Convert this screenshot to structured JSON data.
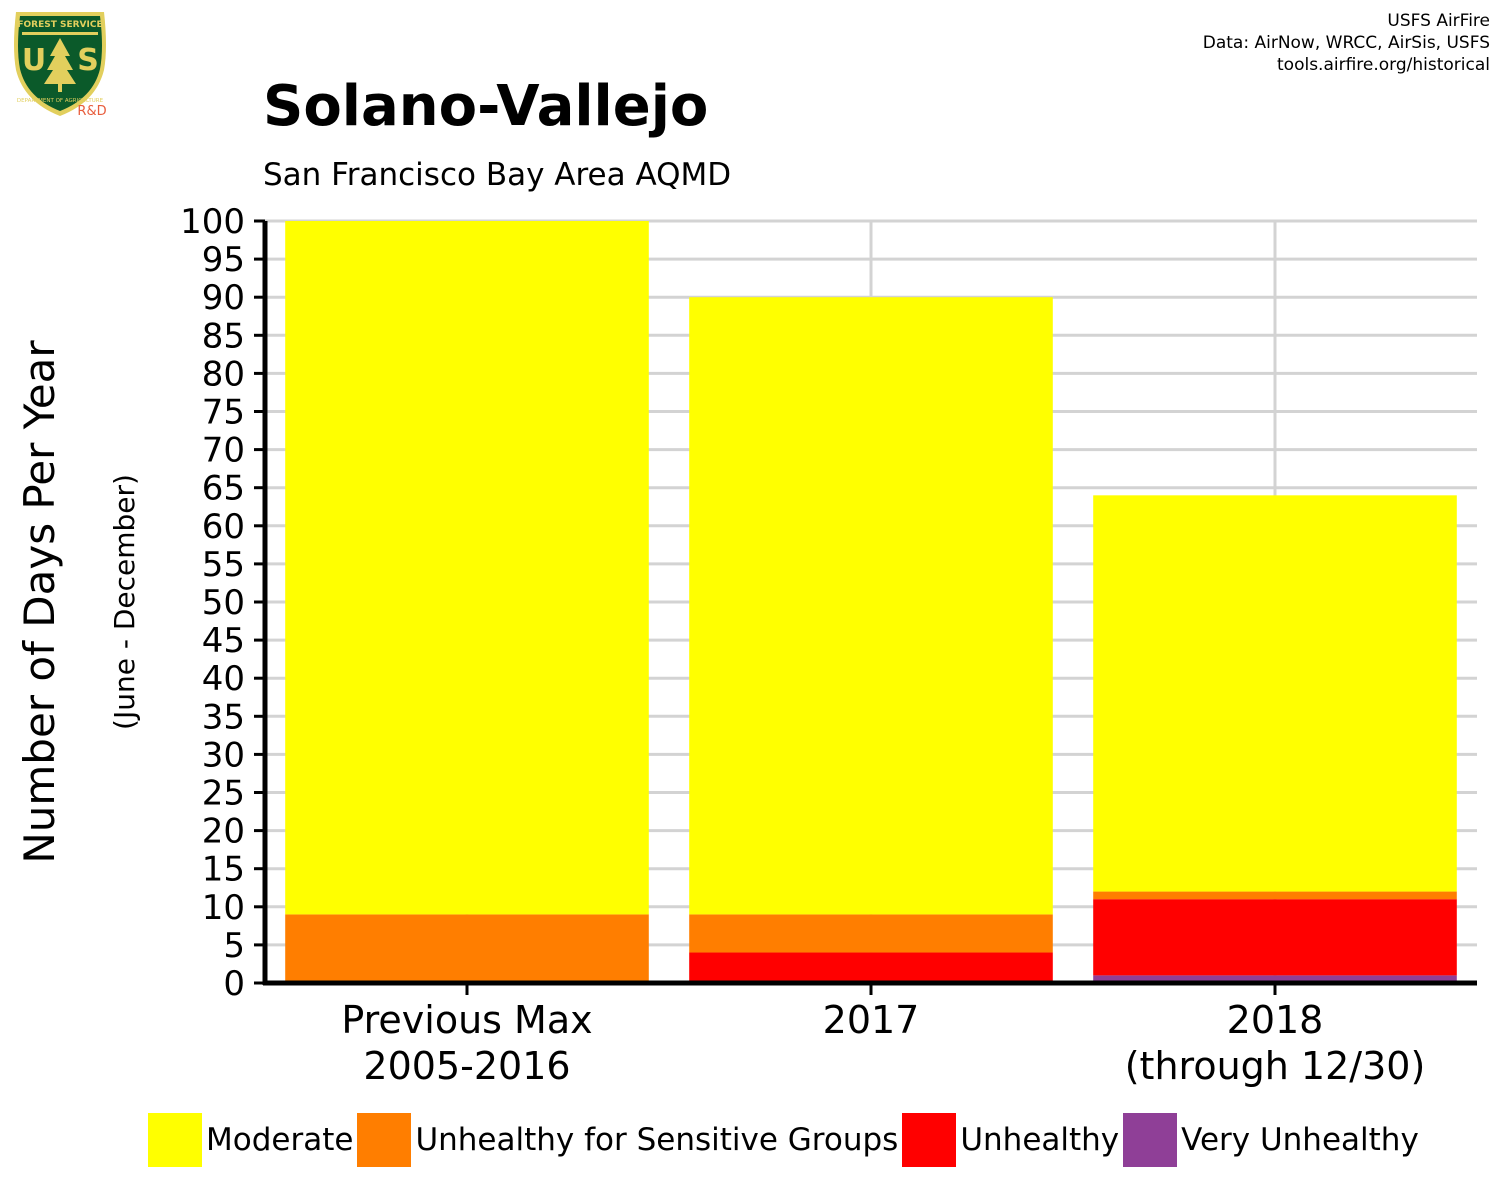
{
  "logo": {
    "top_text": "FOREST SERVICE",
    "bottom_text": "DEPARTMENT OF AGRICULTURE",
    "letters": "USFS",
    "tag": "R&D",
    "shield_color": "#0b5a2a",
    "trim_color": "#e2cf5d",
    "tag_color": "#e85d3d"
  },
  "credits": {
    "line1": "USFS AirFire",
    "line2": "Data: AirNow, WRCC, AirSis, USFS",
    "line3": "tools.airfire.org/historical"
  },
  "title": "Solano-Vallejo",
  "subtitle": "San Francisco Bay Area AQMD",
  "chart_data": {
    "type": "bar",
    "stacked": true,
    "title": "Solano-Vallejo",
    "subtitle": "San Francisco Bay Area AQMD",
    "ylabel": "Number of Days Per Year",
    "ylabel_sub": "(June - December)",
    "ylim": [
      0,
      100
    ],
    "ytick_step": 5,
    "grid": true,
    "legend_position": "bottom",
    "categories": [
      [
        "Previous Max",
        "2005-2016"
      ],
      [
        "2017"
      ],
      [
        "2018",
        "(through 12/30)"
      ]
    ],
    "series": [
      {
        "name": "Very Unhealthy",
        "color": "#8f3f97",
        "values": [
          0,
          0,
          1
        ]
      },
      {
        "name": "Unhealthy",
        "color": "#ff0000",
        "values": [
          0,
          4,
          10
        ]
      },
      {
        "name": "Unhealthy for Sensitive Groups",
        "color": "#ff7e00",
        "values": [
          9,
          5,
          1
        ]
      },
      {
        "name": "Moderate",
        "color": "#ffff00",
        "values": [
          91,
          81,
          52
        ]
      }
    ],
    "legend_order": [
      "Moderate",
      "Unhealthy for Sensitive Groups",
      "Unhealthy",
      "Very Unhealthy"
    ]
  }
}
